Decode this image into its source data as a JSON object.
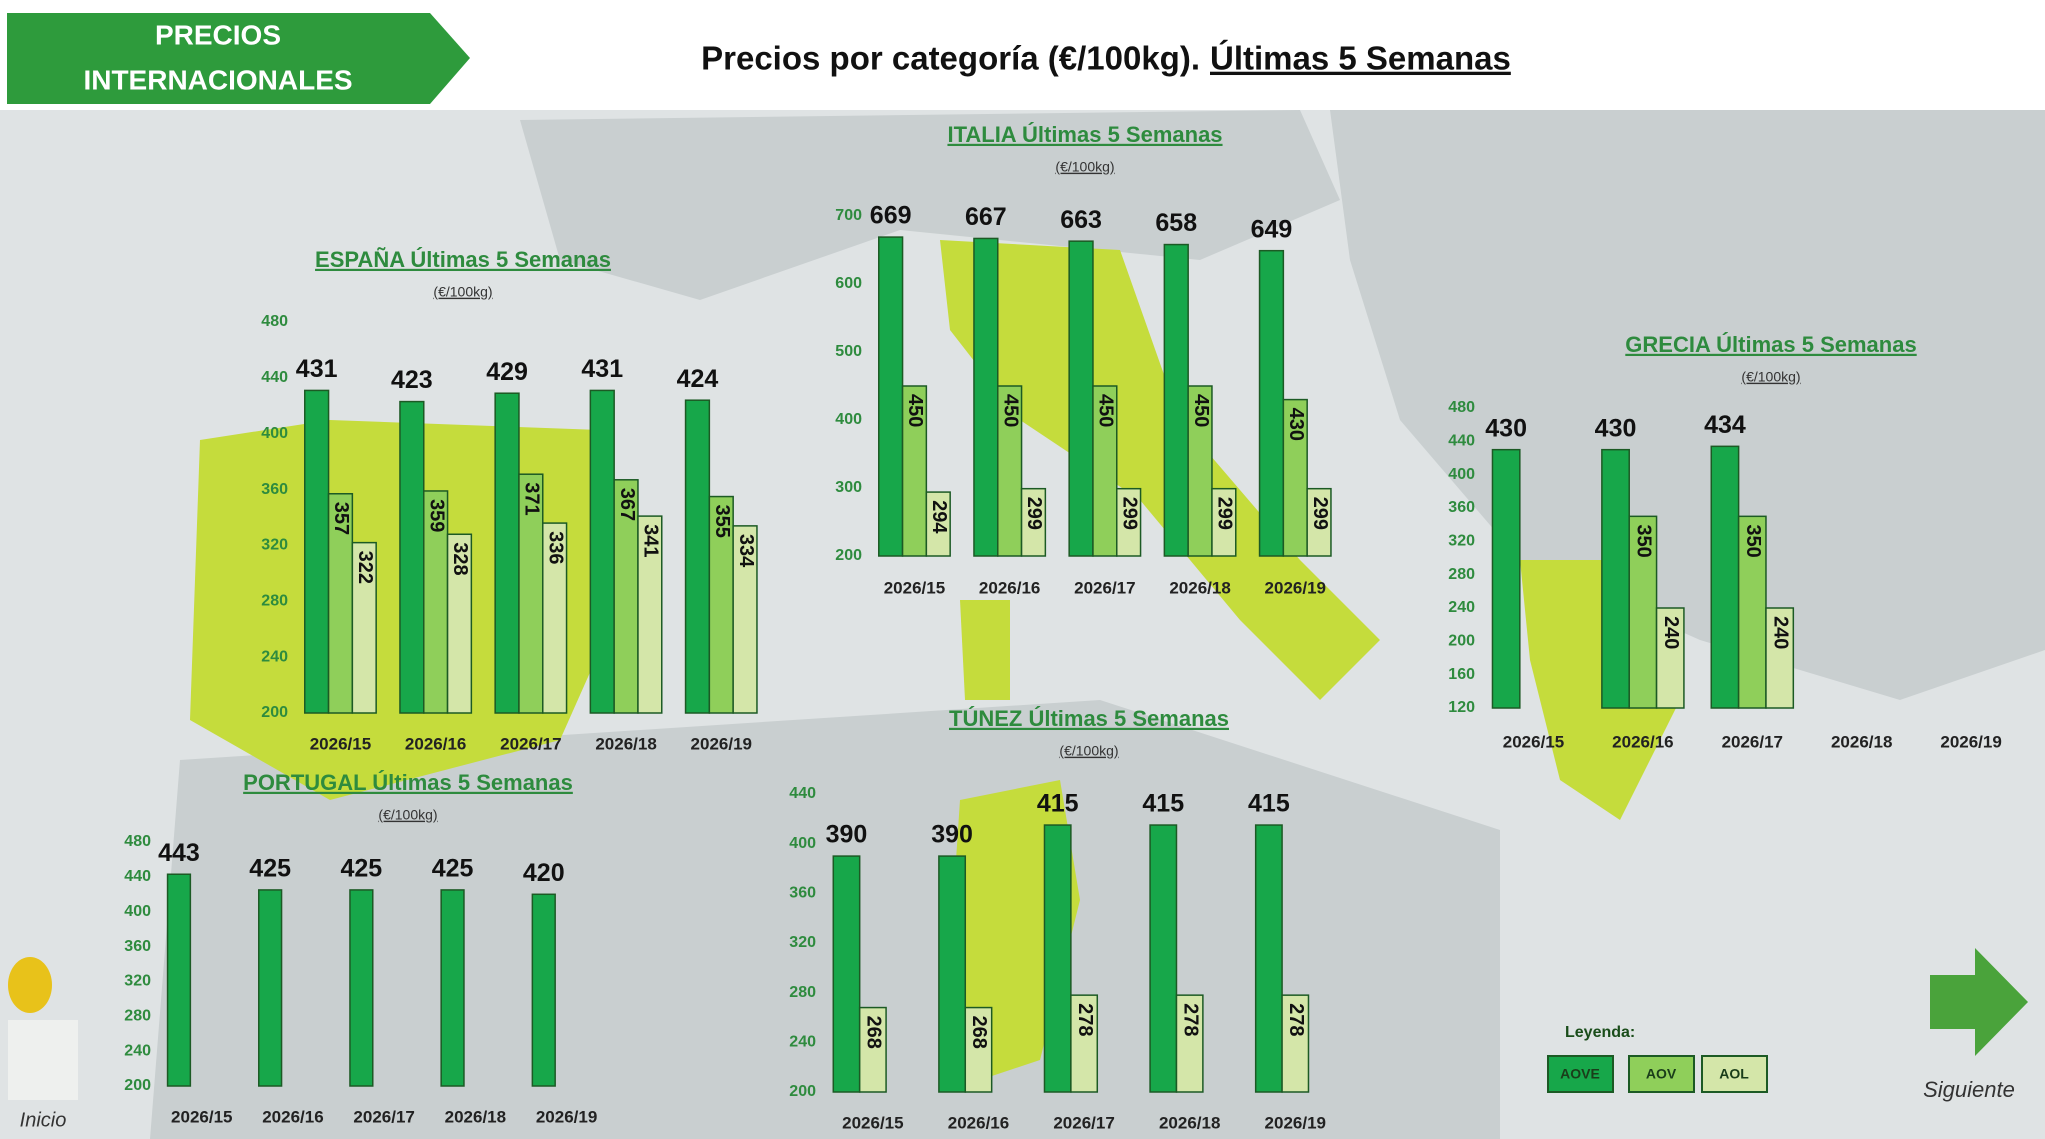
{
  "header": {
    "badge_lines": [
      "PRECIOS",
      "INTERNACIONALES"
    ],
    "title": "Precios por categoría (€/100kg).",
    "title_emphasis": "Últimas 5 Semanas"
  },
  "chart_data": [
    {
      "type": "bar",
      "title": "ESPAÑA Últimas 5 Semanas",
      "subtitle": "(€/100kg)",
      "categories": [
        "2026/15",
        "2026/16",
        "2026/17",
        "2026/18",
        "2026/19"
      ],
      "series": [
        {
          "color": "#17a74a",
          "values": [
            431,
            423,
            429,
            431,
            424
          ]
        },
        {
          "color": "#8fcf5a",
          "values": [
            357,
            359,
            371,
            367,
            355
          ]
        },
        {
          "color": "#d4e6a9",
          "values": [
            322,
            328,
            336,
            341,
            334
          ]
        }
      ],
      "ylim": [
        200,
        480
      ],
      "yticks": [
        200,
        240,
        280,
        320,
        360,
        400,
        440,
        480
      ]
    },
    {
      "type": "bar",
      "title": "ITALIA Últimas 5 Semanas",
      "subtitle": "(€/100kg)",
      "categories": [
        "2026/15",
        "2026/16",
        "2026/17",
        "2026/18",
        "2026/19"
      ],
      "series": [
        {
          "color": "#17a74a",
          "values": [
            669,
            667,
            663,
            658,
            649
          ]
        },
        {
          "color": "#8fcf5a",
          "values": [
            450,
            450,
            450,
            450,
            430
          ]
        },
        {
          "color": "#d4e6a9",
          "values": [
            294,
            299,
            299,
            299,
            299
          ]
        }
      ],
      "ylim": [
        200,
        700
      ],
      "yticks": [
        200,
        300,
        400,
        500,
        600,
        700
      ]
    },
    {
      "type": "bar",
      "title": "GRECIA Últimas 5 Semanas",
      "subtitle": "(€/100kg)",
      "categories": [
        "2026/15",
        "2026/16",
        "2026/17",
        "2026/18",
        "2026/19"
      ],
      "series": [
        {
          "color": "#17a74a",
          "values": [
            430,
            430,
            434,
            null,
            null
          ]
        },
        {
          "color": "#8fcf5a",
          "values": [
            null,
            350,
            350,
            null,
            null
          ]
        },
        {
          "color": "#d4e6a9",
          "values": [
            null,
            240,
            240,
            null,
            null
          ]
        }
      ],
      "ylim": [
        120,
        480
      ],
      "yticks": [
        120,
        160,
        200,
        240,
        280,
        320,
        360,
        400,
        440,
        480
      ]
    },
    {
      "type": "bar",
      "title": "PORTUGAL Últimas 5 Semanas",
      "subtitle": "(€/100kg)",
      "categories": [
        "2026/15",
        "2026/16",
        "2026/17",
        "2026/18",
        "2026/19"
      ],
      "series": [
        {
          "color": "#17a74a",
          "values": [
            443,
            425,
            425,
            425,
            420
          ]
        }
      ],
      "ylim": [
        200,
        480
      ],
      "yticks": [
        200,
        240,
        280,
        320,
        360,
        400,
        440,
        480
      ]
    },
    {
      "type": "bar",
      "title": "TÚNEZ Últimas 5 Semanas",
      "subtitle": "(€/100kg)",
      "categories": [
        "2026/15",
        "2026/16",
        "2026/17",
        "2026/18",
        "2026/19"
      ],
      "series": [
        {
          "color": "#17a74a",
          "values": [
            390,
            390,
            415,
            415,
            415
          ]
        },
        {
          "color": "#d4e6a9",
          "values": [
            268,
            268,
            278,
            278,
            278
          ]
        }
      ],
      "ylim": [
        200,
        440
      ],
      "yticks": [
        200,
        240,
        280,
        320,
        360,
        400,
        440
      ]
    }
  ],
  "legend": {
    "title": "Leyenda:",
    "items": [
      {
        "name": "AOVE",
        "color": "#17a74a"
      },
      {
        "name": "AOV",
        "color": "#8fcf5a"
      },
      {
        "name": "AOL",
        "color": "#d4e6a9"
      }
    ]
  },
  "nav": {
    "home": "Inicio",
    "next": "Siguiente"
  }
}
